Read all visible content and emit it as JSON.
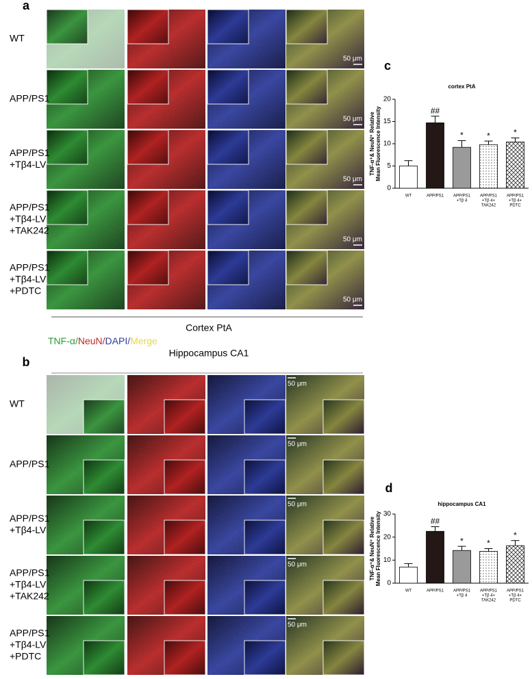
{
  "panel_labels": [
    "a",
    "b",
    "c",
    "d"
  ],
  "cortex": {
    "row_labels": [
      [
        "WT"
      ],
      [
        "APP/PS1"
      ],
      [
        "APP/PS1",
        "+Tβ4-LV"
      ],
      [
        "APP/PS1",
        "+Tβ4-LV",
        "+TAK242"
      ],
      [
        "APP/PS1",
        "+Tβ4-LV",
        "+PDTC"
      ]
    ],
    "scale_bar": "50 μm",
    "caption": "Cortex PtA"
  },
  "legend": {
    "parts": [
      "TNF-α/",
      "NeuN/",
      "DAPI/",
      "Merge"
    ],
    "colors": [
      "#2a9a3a",
      "#c0282a",
      "#2c3a9c",
      "#e6d84a"
    ]
  },
  "hippocampus": {
    "title": "Hippocampus CA1",
    "row_labels": [
      [
        "WT"
      ],
      [
        "APP/PS1"
      ],
      [
        "APP/PS1",
        "+Tβ4-LV"
      ],
      [
        "APP/PS1",
        "+Tβ4-LV",
        "+TAK242"
      ],
      [
        "APP/PS1",
        "+Tβ4-LV",
        "+PDTC"
      ]
    ],
    "scale_bar": "50 μm"
  },
  "chart_data": [
    {
      "type": "bar",
      "title": "cortex PtA",
      "ylabel": [
        "TNF-α⁺& NeuN⁺ Relative",
        "Mean Fluorescence Intensity"
      ],
      "categories": [
        [
          "WT"
        ],
        [
          "APP/PS1"
        ],
        [
          "APP/PS1",
          "+Tβ 4"
        ],
        [
          "APP/PS1",
          "+Tβ 4+",
          "TAK242"
        ],
        [
          "APP/PS1",
          "+Tβ 4+",
          "PDTC"
        ]
      ],
      "values": [
        5,
        14.7,
        9.2,
        9.8,
        10.4
      ],
      "errors": [
        1.2,
        1.5,
        1.5,
        0.8,
        0.9
      ],
      "annotations": [
        null,
        "##",
        "*",
        "*",
        "*"
      ],
      "bar_styles": [
        "white",
        "black",
        "gray",
        "dots",
        "crosshatch"
      ],
      "ylim": [
        0,
        20
      ],
      "yticks": [
        0,
        5,
        10,
        15,
        20
      ]
    },
    {
      "type": "bar",
      "title": "hippocampus CA1",
      "ylabel": [
        "TNF-α⁺& NeuN⁺ Relative",
        "Mean Fluorescence Intensity"
      ],
      "categories": [
        [
          "WT"
        ],
        [
          "APP/PS1"
        ],
        [
          "APP/PS1",
          "+Tβ 4"
        ],
        [
          "APP/PS1",
          "+Tβ 4+",
          "TAK242"
        ],
        [
          "APP/PS1",
          "+Tβ 4+",
          "PDTC"
        ]
      ],
      "values": [
        7,
        22.5,
        14.2,
        13.8,
        16.3
      ],
      "errors": [
        1.5,
        2.0,
        1.8,
        1.2,
        2.2
      ],
      "annotations": [
        null,
        "##",
        "*",
        "*",
        "*"
      ],
      "bar_styles": [
        "white",
        "black",
        "gray",
        "dots",
        "crosshatch"
      ],
      "ylim": [
        0,
        30
      ],
      "yticks": [
        0,
        10,
        20,
        30
      ]
    }
  ]
}
